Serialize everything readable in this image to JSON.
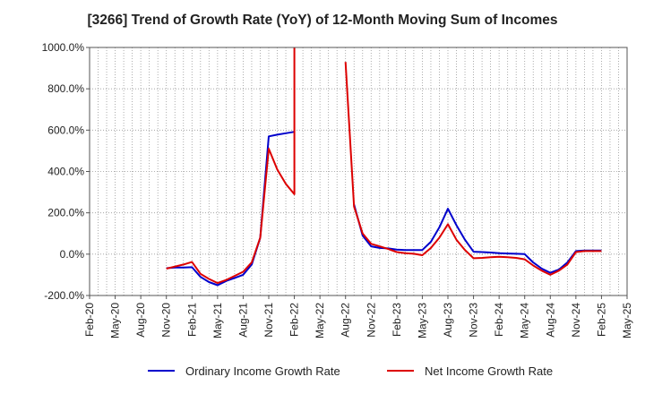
{
  "chart_data": {
    "type": "line",
    "title": "[3266]  Trend of Growth Rate (YoY) of 12-Month Moving Sum of Incomes",
    "xlabel": "",
    "ylabel": "",
    "ylim": [
      -200,
      1000
    ],
    "yticks": [
      -200,
      0,
      200,
      400,
      600,
      800,
      1000
    ],
    "ytick_labels": [
      "-200.0%",
      "0.0%",
      "200.0%",
      "400.0%",
      "600.0%",
      "800.0%",
      "1000.0%"
    ],
    "xticks": [
      "Feb-20",
      "May-20",
      "Aug-20",
      "Nov-20",
      "Feb-21",
      "May-21",
      "Aug-21",
      "Nov-21",
      "Feb-22",
      "May-22",
      "Aug-22",
      "Nov-22",
      "Feb-23",
      "May-23",
      "Aug-23",
      "Nov-23",
      "Feb-24",
      "May-24",
      "Aug-24",
      "Nov-24",
      "Feb-25",
      "May-25"
    ],
    "x_start": "2020-02",
    "grid": true,
    "legend_position": "bottom",
    "series": [
      {
        "name": "Ordinary Income Growth Rate",
        "color": "#0000cc",
        "points": [
          [
            "2020-11",
            -68
          ],
          [
            "2020-12",
            -65
          ],
          [
            "2021-01",
            -65
          ],
          [
            "2021-02",
            -63
          ],
          [
            "2021-03",
            -110
          ],
          [
            "2021-04",
            -135
          ],
          [
            "2021-05",
            -150
          ],
          [
            "2021-06",
            -130
          ],
          [
            "2021-07",
            -115
          ],
          [
            "2021-08",
            -100
          ],
          [
            "2021-09",
            -50
          ],
          [
            "2021-10",
            80
          ],
          [
            "2021-11",
            570
          ],
          [
            "2021-12",
            578
          ],
          [
            "2022-01",
            585
          ],
          [
            "2022-02",
            592
          ],
          null,
          [
            "2022-09",
            240
          ],
          [
            "2022-10",
            90
          ],
          [
            "2022-11",
            38
          ],
          [
            "2022-12",
            30
          ],
          [
            "2023-01",
            28
          ],
          [
            "2023-02",
            22
          ],
          [
            "2023-03",
            20
          ],
          [
            "2023-04",
            20
          ],
          [
            "2023-05",
            20
          ],
          [
            "2023-06",
            60
          ],
          [
            "2023-07",
            130
          ],
          [
            "2023-08",
            220
          ],
          [
            "2023-09",
            140
          ],
          [
            "2023-10",
            70
          ],
          [
            "2023-11",
            12
          ],
          [
            "2023-12",
            10
          ],
          [
            "2024-01",
            8
          ],
          [
            "2024-02",
            5
          ],
          [
            "2024-03",
            3
          ],
          [
            "2024-04",
            2
          ],
          [
            "2024-05",
            0
          ],
          [
            "2024-06",
            -40
          ],
          [
            "2024-07",
            -70
          ],
          [
            "2024-08",
            -90
          ],
          [
            "2024-09",
            -75
          ],
          [
            "2024-10",
            -40
          ],
          [
            "2024-11",
            15
          ],
          [
            "2024-12",
            18
          ],
          [
            "2025-01",
            18
          ],
          [
            "2025-02",
            18
          ]
        ]
      },
      {
        "name": "Net Income Growth Rate",
        "color": "#dd0000",
        "points": [
          [
            "2020-11",
            -70
          ],
          [
            "2020-12",
            -60
          ],
          [
            "2021-01",
            -50
          ],
          [
            "2021-02",
            -38
          ],
          [
            "2021-03",
            -95
          ],
          [
            "2021-04",
            -120
          ],
          [
            "2021-05",
            -140
          ],
          [
            "2021-06",
            -125
          ],
          [
            "2021-07",
            -105
          ],
          [
            "2021-08",
            -85
          ],
          [
            "2021-09",
            -40
          ],
          [
            "2021-10",
            80
          ],
          [
            "2021-11",
            510
          ],
          [
            "2021-12",
            410
          ],
          [
            "2022-01",
            340
          ],
          [
            "2022-02",
            290
          ],
          [
            "2022-02",
            1000
          ],
          null,
          [
            "2022-08",
            930
          ],
          [
            "2022-09",
            230
          ],
          [
            "2022-10",
            100
          ],
          [
            "2022-11",
            50
          ],
          [
            "2022-12",
            38
          ],
          [
            "2023-01",
            25
          ],
          [
            "2023-02",
            10
          ],
          [
            "2023-03",
            5
          ],
          [
            "2023-04",
            2
          ],
          [
            "2023-05",
            -5
          ],
          [
            "2023-06",
            30
          ],
          [
            "2023-07",
            80
          ],
          [
            "2023-08",
            145
          ],
          [
            "2023-09",
            70
          ],
          [
            "2023-10",
            20
          ],
          [
            "2023-11",
            -20
          ],
          [
            "2023-12",
            -18
          ],
          [
            "2024-01",
            -15
          ],
          [
            "2024-02",
            -13
          ],
          [
            "2024-03",
            -15
          ],
          [
            "2024-04",
            -18
          ],
          [
            "2024-05",
            -25
          ],
          [
            "2024-06",
            -55
          ],
          [
            "2024-07",
            -80
          ],
          [
            "2024-08",
            -100
          ],
          [
            "2024-09",
            -80
          ],
          [
            "2024-10",
            -50
          ],
          [
            "2024-11",
            10
          ],
          [
            "2024-12",
            15
          ],
          [
            "2025-01",
            15
          ],
          [
            "2025-02",
            15
          ]
        ]
      }
    ]
  }
}
